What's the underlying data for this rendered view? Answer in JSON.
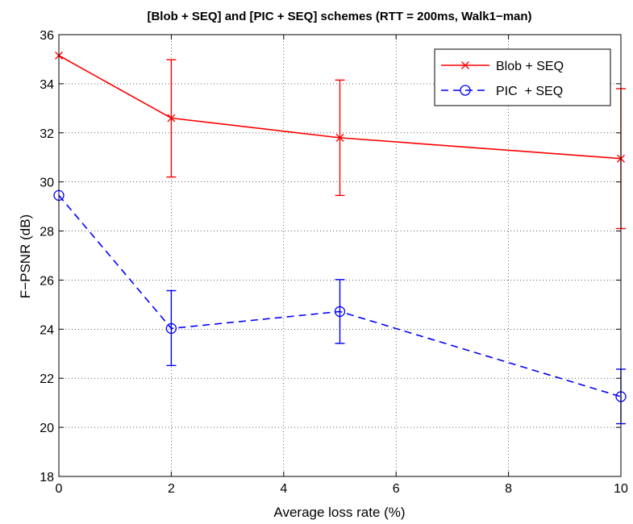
{
  "chart_data": {
    "type": "line",
    "title": "[Blob + SEQ] and [PIC + SEQ] schemes (RTT = 200ms, Walk1−man)",
    "xlabel": "Average loss rate (%)",
    "ylabel": "F−PSNR (dB)",
    "xlim": [
      0,
      10
    ],
    "ylim": [
      18,
      36
    ],
    "xticks": [
      "0",
      "2",
      "4",
      "6",
      "8",
      "10"
    ],
    "yticks": [
      "18",
      "20",
      "22",
      "24",
      "26",
      "28",
      "30",
      "32",
      "34",
      "36"
    ],
    "grid": true,
    "legend_position": "top-right",
    "x": [
      0,
      2,
      5,
      10
    ],
    "series": [
      {
        "name": "Blob + SEQ",
        "color": "#ff0000",
        "line_style": "solid",
        "marker": "x",
        "values": [
          35.15,
          32.6,
          31.8,
          30.95
        ],
        "error_lower": [
          null,
          30.2,
          29.45,
          28.1
        ],
        "error_upper": [
          null,
          34.98,
          34.15,
          33.8
        ]
      },
      {
        "name": "PIC  + SEQ",
        "color": "#0000ff",
        "line_style": "dashed",
        "marker": "circle",
        "values": [
          29.45,
          24.03,
          24.72,
          21.25
        ],
        "error_lower": [
          null,
          22.52,
          23.42,
          20.15
        ],
        "error_upper": [
          null,
          25.57,
          26.02,
          22.37
        ]
      }
    ]
  }
}
